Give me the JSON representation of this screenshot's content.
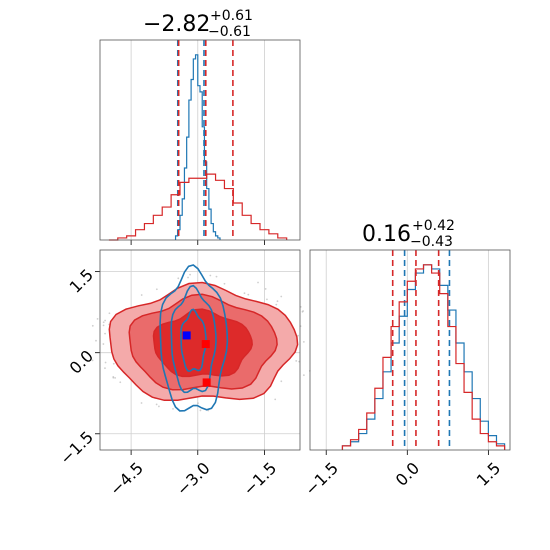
{
  "colors": {
    "red": "#d62728",
    "blue": "#1f77b4",
    "red_fill_dark": "#dd2a2a",
    "red_fill_mid": "#ea6b6b",
    "red_fill_light": "#f4aaaa",
    "blue_marker": "#0000ff",
    "red_marker": "#ff0000",
    "grid": "#cfcfcf"
  },
  "titles": {
    "param1": {
      "value": "−2.82",
      "plus": "+0.61",
      "minus": "−0.61"
    },
    "param2": {
      "value": "0.16",
      "plus": "+0.42",
      "minus": "−0.43"
    }
  },
  "chart_data": [
    {
      "type": "histogram",
      "panel": "marginal-param1",
      "xlim": [
        -5.2,
        -0.7
      ],
      "series": [
        {
          "name": "",
          "color": "#1f77b4",
          "bins": [
            -3.5,
            -3.45,
            -3.4,
            -3.35,
            -3.3,
            -3.25,
            -3.2,
            -3.15,
            -3.1,
            -3.05,
            -3.0,
            -2.95,
            -2.9,
            -2.85,
            -2.8,
            -2.75,
            -2.7,
            -2.65,
            -2.6,
            -2.55,
            -2.5
          ],
          "counts": [
            0.02,
            0.05,
            0.12,
            0.2,
            0.35,
            0.5,
            0.68,
            0.78,
            0.88,
            0.9,
            0.75,
            0.72,
            0.55,
            0.38,
            0.25,
            0.15,
            0.08,
            0.04,
            0.02,
            0.01
          ],
          "quantiles": [
            -3.45,
            -2.86
          ]
        },
        {
          "name": "",
          "color": "#d62728",
          "bins": [
            -5.0,
            -4.8,
            -4.6,
            -4.4,
            -4.2,
            -4.0,
            -3.8,
            -3.6,
            -3.4,
            -3.2,
            -3.0,
            -2.8,
            -2.6,
            -2.4,
            -2.2,
            -2.0,
            -1.8,
            -1.6,
            -1.4,
            -1.2,
            -1.0
          ],
          "counts": [
            0.0,
            0.01,
            0.02,
            0.05,
            0.08,
            0.12,
            0.16,
            0.22,
            0.28,
            0.3,
            0.3,
            0.32,
            0.29,
            0.25,
            0.18,
            0.12,
            0.08,
            0.05,
            0.03,
            0.01
          ],
          "quantiles": [
            -3.43,
            -2.82,
            -2.21
          ]
        }
      ]
    },
    {
      "type": "histogram",
      "panel": "marginal-param2",
      "xlim": [
        -1.8,
        1.9
      ],
      "xticks": [
        "−1.5",
        "0.0",
        "1.5"
      ],
      "series": [
        {
          "name": "",
          "color": "#1f77b4",
          "bins": [
            -1.2,
            -1.05,
            -0.9,
            -0.75,
            -0.6,
            -0.45,
            -0.3,
            -0.15,
            0.0,
            0.15,
            0.3,
            0.45,
            0.6,
            0.75,
            0.9,
            1.05,
            1.2,
            1.35,
            1.5,
            1.65,
            1.8
          ],
          "counts": [
            0.02,
            0.04,
            0.08,
            0.15,
            0.25,
            0.38,
            0.52,
            0.65,
            0.78,
            0.86,
            0.9,
            0.88,
            0.8,
            0.68,
            0.52,
            0.38,
            0.25,
            0.14,
            0.07,
            0.03
          ],
          "quantiles": [
            -0.05,
            0.78
          ]
        },
        {
          "name": "",
          "color": "#d62728",
          "bins": [
            -1.2,
            -1.05,
            -0.9,
            -0.75,
            -0.6,
            -0.45,
            -0.3,
            -0.15,
            0.0,
            0.15,
            0.3,
            0.45,
            0.6,
            0.75,
            0.9,
            1.05,
            1.2,
            1.35,
            1.5,
            1.65,
            1.8
          ],
          "counts": [
            0.02,
            0.05,
            0.1,
            0.18,
            0.3,
            0.45,
            0.6,
            0.72,
            0.82,
            0.88,
            0.9,
            0.86,
            0.76,
            0.6,
            0.42,
            0.28,
            0.15,
            0.08,
            0.04,
            0.02
          ],
          "quantiles": [
            -0.27,
            0.16,
            0.58
          ]
        }
      ]
    },
    {
      "type": "contour",
      "panel": "joint",
      "xlim": [
        -5.2,
        -0.7
      ],
      "ylim": [
        -1.8,
        1.9
      ],
      "xticks": [
        "−4.5",
        "−3.0",
        "−1.5"
      ],
      "yticks": [
        "−1.5",
        "0.0",
        "1.5"
      ],
      "red_levels": [
        {
          "cx": -2.9,
          "cy": 0.15,
          "rx": 2.1,
          "ry": 1.05
        },
        {
          "cx": -2.9,
          "cy": 0.15,
          "rx": 1.65,
          "ry": 0.85
        },
        {
          "cx": -2.9,
          "cy": 0.15,
          "rx": 1.1,
          "ry": 0.6
        }
      ],
      "blue_levels": [
        {
          "cx": -3.1,
          "cy": 0.2,
          "rx": 0.75,
          "ry": 1.3
        },
        {
          "cx": -3.1,
          "cy": 0.2,
          "rx": 0.5,
          "ry": 0.95
        },
        {
          "cx": -3.1,
          "cy": 0.2,
          "rx": 0.28,
          "ry": 0.55
        }
      ],
      "markers": [
        {
          "color": "#0000ff",
          "x": -3.25,
          "y": 0.32
        },
        {
          "color": "#ff0000",
          "x": -2.82,
          "y": 0.16
        },
        {
          "color": "#ff0000",
          "x": -2.8,
          "y": -0.55
        }
      ]
    }
  ]
}
